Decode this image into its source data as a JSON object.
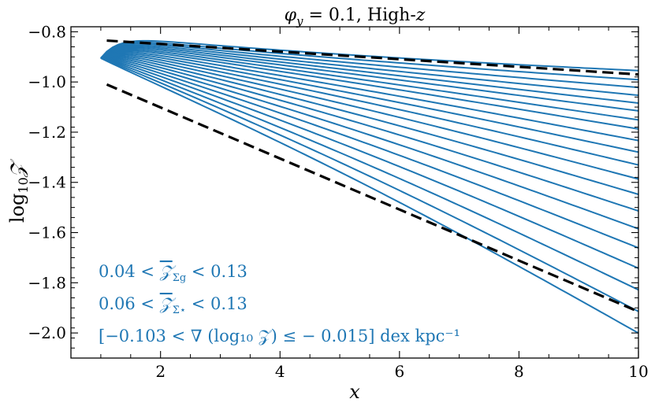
{
  "chart_data": {
    "type": "line",
    "title": "φ_y = 0.1, High-z",
    "title_parts": {
      "symbol": "φ",
      "subscript": "y",
      "rest": " = 0.1, High-",
      "var": "z"
    },
    "xlabel": "x",
    "ylabel": "log₁₀ 𝒵",
    "ylabel_parts": {
      "main": "log",
      "sub": "10",
      "var": "𝒵"
    },
    "xlim": [
      0.5,
      10
    ],
    "ylim": [
      -2.1,
      -0.78
    ],
    "xticks": [
      2,
      4,
      6,
      8,
      10
    ],
    "xtick_labels": [
      "2",
      "4",
      "6",
      "8",
      "10"
    ],
    "yticks": [
      -0.8,
      -1.0,
      -1.2,
      -1.4,
      -1.6,
      -1.8,
      -2.0
    ],
    "ytick_labels": [
      "−0.8",
      "−1.0",
      "−1.2",
      "−1.4",
      "−1.6",
      "−1.8",
      "−2.0"
    ],
    "grid": false,
    "tick_direction": "in",
    "curve_family": {
      "color": "#1f77b4",
      "x_start": 1.0,
      "x_end": 10.0,
      "y_start": -0.905,
      "count": 20,
      "y_end": [
        -0.975,
        -1.01,
        -1.04,
        -1.07,
        -1.1,
        -1.13,
        -1.165,
        -1.2,
        -1.245,
        -1.29,
        -1.34,
        -1.395,
        -1.455,
        -1.52,
        -1.59,
        -1.665,
        -1.745,
        -1.83,
        -1.915,
        -2.0
      ],
      "shape_note": "curves fan out from a common origin at x=1 and decrease roughly linearly toward their end values"
    },
    "dashed_lines": [
      {
        "name": "upper bound",
        "x": [
          1.1,
          10.0
        ],
        "y": [
          -0.835,
          -0.97
        ],
        "color": "#000000"
      },
      {
        "name": "lower bound",
        "x": [
          1.1,
          10.0
        ],
        "y": [
          -1.01,
          -1.915
        ],
        "color": "#000000"
      }
    ],
    "annotations": {
      "line1": {
        "pre": "0.04 < ",
        "var": "𝒵",
        "sub": "Σg",
        "post": " < 0.13"
      },
      "line2": {
        "pre": "0.06 < ",
        "var": "𝒵",
        "sub": "Σ̇⋆",
        "post": " < 0.13"
      },
      "line3": "[−0.103 < ∇ (log₁₀ 𝒵) ≤ − 0.015] dex kpc⁻¹",
      "color": "#1f77b4"
    }
  }
}
